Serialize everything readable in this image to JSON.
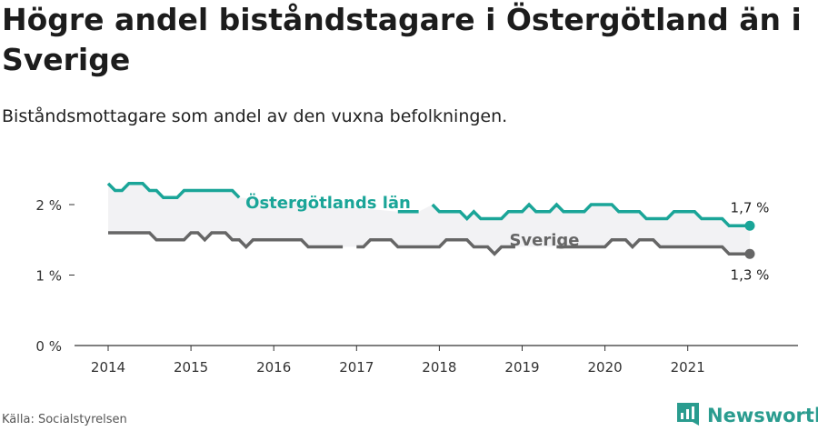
{
  "title": "Högre andel biståndstagare i Östergötland än i Sverige",
  "subtitle": "Biståndsmottagare som andel av den vuxna befolkningen.",
  "source": "Källa: Socialstyrelsen",
  "brand": "Newsworthy",
  "colors": {
    "ostergotland": "#1aa598",
    "sverige": "#666666",
    "fill": "#f2f2f4",
    "axis": "#333333",
    "brand": "#2a9c8f"
  },
  "chart_data": {
    "type": "line",
    "title": "Högre andel biståndstagare i Östergötland än i Sverige",
    "subtitle": "Biståndsmottagare som andel av den vuxna befolkningen.",
    "xlabel": "",
    "ylabel": "",
    "ylim": [
      0,
      2.3
    ],
    "xlim": [
      2013.6,
      2022.3
    ],
    "y_ticks": [
      {
        "value": 0,
        "label": "0 %"
      },
      {
        "value": 1,
        "label": "1 %"
      },
      {
        "value": 2,
        "label": "2 %"
      }
    ],
    "x_ticks": [
      {
        "value": 2014,
        "label": "2014"
      },
      {
        "value": 2015,
        "label": "2015"
      },
      {
        "value": 2016,
        "label": "2016"
      },
      {
        "value": 2017,
        "label": "2017"
      },
      {
        "value": 2018,
        "label": "2018"
      },
      {
        "value": 2019,
        "label": "2019"
      },
      {
        "value": 2020,
        "label": "2020"
      },
      {
        "value": 2021,
        "label": "2021"
      }
    ],
    "grid": false,
    "x_start": 2014.0,
    "x_step": 0.08333,
    "series": [
      {
        "name": "Östergötlands län",
        "color": "#1aa598",
        "end_label": "1,7 %",
        "values": [
          2.3,
          2.2,
          2.2,
          2.3,
          2.3,
          2.3,
          2.2,
          2.2,
          2.1,
          2.1,
          2.1,
          2.2,
          2.2,
          2.2,
          2.2,
          2.2,
          2.2,
          2.2,
          2.2,
          2.1,
          null,
          null,
          null,
          null,
          null,
          null,
          null,
          null,
          null,
          null,
          null,
          null,
          null,
          null,
          null,
          null,
          null,
          null,
          null,
          null,
          null,
          null,
          1.9,
          1.9,
          1.9,
          1.9,
          null,
          2.0,
          1.9,
          1.9,
          1.9,
          1.9,
          1.8,
          1.9,
          1.8,
          1.8,
          1.8,
          1.8,
          1.9,
          1.9,
          1.9,
          2.0,
          1.9,
          1.9,
          1.9,
          2.0,
          1.9,
          1.9,
          1.9,
          1.9,
          2.0,
          2.0,
          2.0,
          2.0,
          1.9,
          1.9,
          1.9,
          1.9,
          1.8,
          1.8,
          1.8,
          1.8,
          1.9,
          1.9,
          1.9,
          1.9,
          1.8,
          1.8,
          1.8,
          1.8,
          1.7,
          1.7,
          1.7,
          1.7
        ]
      },
      {
        "name": "Sverige",
        "color": "#666666",
        "end_label": "1,3 %",
        "values": [
          1.6,
          1.6,
          1.6,
          1.6,
          1.6,
          1.6,
          1.6,
          1.5,
          1.5,
          1.5,
          1.5,
          1.5,
          1.6,
          1.6,
          1.5,
          1.6,
          1.6,
          1.6,
          1.5,
          1.5,
          1.4,
          1.5,
          1.5,
          1.5,
          1.5,
          1.5,
          1.5,
          1.5,
          1.5,
          1.4,
          1.4,
          1.4,
          1.4,
          1.4,
          1.4,
          null,
          1.4,
          1.4,
          1.5,
          1.5,
          1.5,
          1.5,
          1.4,
          1.4,
          1.4,
          1.4,
          1.4,
          1.4,
          1.4,
          1.5,
          1.5,
          1.5,
          1.5,
          1.4,
          1.4,
          1.4,
          1.3,
          1.4,
          1.4,
          1.4,
          null,
          null,
          null,
          null,
          null,
          1.4,
          1.4,
          1.4,
          1.4,
          1.4,
          1.4,
          1.4,
          1.4,
          1.5,
          1.5,
          1.5,
          1.4,
          1.5,
          1.5,
          1.5,
          1.4,
          1.4,
          1.4,
          1.4,
          1.4,
          1.4,
          1.4,
          1.4,
          1.4,
          1.4,
          1.3,
          1.3,
          1.3,
          1.3
        ]
      }
    ]
  }
}
